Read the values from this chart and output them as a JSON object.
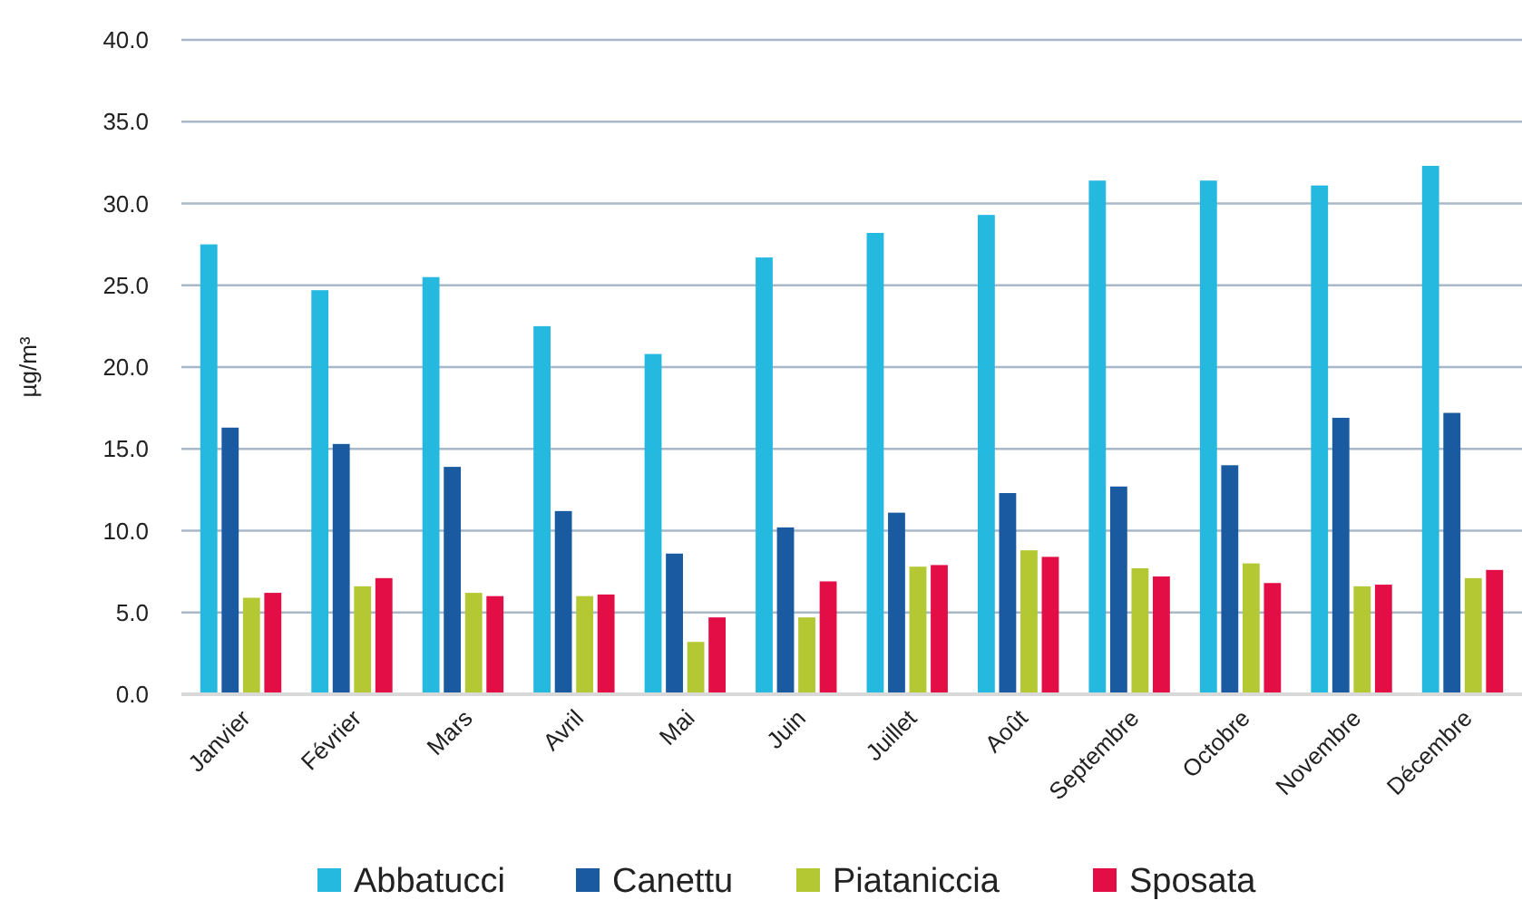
{
  "chart_data": {
    "type": "bar",
    "ylabel": "µg/m³",
    "categories": [
      "Janvier",
      "Février",
      "Mars",
      "Avril",
      "Mai",
      "Juin",
      "Juillet",
      "Août",
      "Septembre",
      "Octobre",
      "Novembre",
      "Décembre"
    ],
    "series": [
      {
        "name": "Abbatucci",
        "color": "#25b9e0",
        "values": [
          27.5,
          24.7,
          25.5,
          22.5,
          20.8,
          26.7,
          28.2,
          29.3,
          31.4,
          31.4,
          31.1,
          32.3
        ]
      },
      {
        "name": "Canettu",
        "color": "#1a5aa0",
        "values": [
          16.3,
          15.3,
          13.9,
          11.2,
          8.6,
          10.2,
          11.1,
          12.3,
          12.7,
          14.0,
          16.9,
          17.2
        ]
      },
      {
        "name": "Piataniccia",
        "color": "#b3c833",
        "values": [
          5.9,
          6.6,
          6.2,
          6.0,
          3.2,
          4.7,
          7.8,
          8.8,
          7.7,
          8.0,
          6.6,
          7.1
        ]
      },
      {
        "name": "Sposata",
        "color": "#e30e45",
        "values": [
          6.2,
          7.1,
          6.0,
          6.1,
          4.7,
          6.9,
          7.9,
          8.4,
          7.2,
          6.8,
          6.7,
          7.6
        ]
      }
    ],
    "ylim": [
      0,
      40
    ],
    "yticks": [
      {
        "value": 0,
        "label": "0.0"
      },
      {
        "value": 5,
        "label": "5.0"
      },
      {
        "value": 10,
        "label": "10.0"
      },
      {
        "value": 15,
        "label": "15.0"
      },
      {
        "value": 20,
        "label": "20.0"
      },
      {
        "value": 25,
        "label": "25.0"
      },
      {
        "value": 30,
        "label": "30.0"
      },
      {
        "value": 35,
        "label": "35.0"
      },
      {
        "value": 40,
        "label": "40.0"
      }
    ],
    "grid": "y",
    "legend": "bottom"
  }
}
